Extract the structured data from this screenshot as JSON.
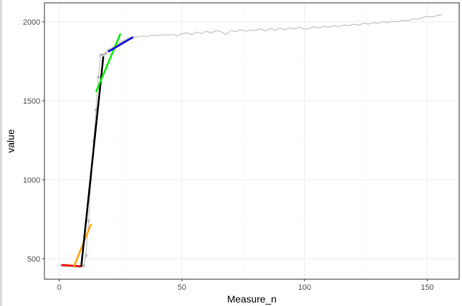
{
  "chart_data": {
    "type": "line",
    "title": "",
    "xlabel": "Measure_n",
    "ylabel": "value",
    "xlim": [
      -6,
      163
    ],
    "ylim": [
      370,
      2120
    ],
    "xticks": [
      0,
      50,
      100,
      150
    ],
    "yticks": [
      500,
      1000,
      1500,
      2000
    ],
    "grid": true,
    "legend": "none",
    "colors": {
      "line": "#bdbdbd",
      "points": "#a9a9a9",
      "fit_red": "#ff0000",
      "fit_orange": "#ffa500",
      "fit_black": "#000000",
      "fit_green": "#00ee00",
      "fit_blue": "#0000ee",
      "grid": "#ebebeb",
      "border": "#333333"
    },
    "series": [
      {
        "kind": "line",
        "color": "#bdbdbd",
        "x": [
          1,
          2,
          3,
          4,
          5,
          6,
          7,
          8,
          9,
          10,
          11,
          12,
          13,
          14,
          15,
          16,
          17,
          18,
          19,
          20,
          21,
          22,
          23,
          24,
          25,
          26,
          27,
          28,
          29,
          30,
          32,
          34,
          36,
          38,
          40,
          42,
          44,
          46,
          48,
          50,
          52,
          54,
          56,
          58,
          60,
          62,
          64,
          66,
          68,
          70,
          72,
          74,
          76,
          78,
          80,
          82,
          84,
          86,
          88,
          90,
          92,
          94,
          96,
          98,
          100,
          102,
          104,
          106,
          108,
          110,
          112,
          114,
          116,
          118,
          120,
          122,
          124,
          126,
          128,
          130,
          132,
          134,
          136,
          138,
          140,
          142,
          144,
          146,
          148,
          150,
          152,
          154,
          156
        ],
        "y": [
          458,
          457,
          456,
          455,
          454,
          452,
          451,
          450,
          453,
          455,
          540,
          740,
          1000,
          1250,
          1440,
          1650,
          1790,
          1790,
          1800,
          1820,
          1825,
          1835,
          1845,
          1855,
          1865,
          1875,
          1880,
          1890,
          1895,
          1900,
          1905,
          1910,
          1908,
          1915,
          1912,
          1918,
          1915,
          1920,
          1910,
          1925,
          1930,
          1918,
          1935,
          1925,
          1940,
          1930,
          1945,
          1935,
          1920,
          1945,
          1938,
          1950,
          1940,
          1948,
          1944,
          1955,
          1942,
          1958,
          1946,
          1960,
          1950,
          1962,
          1955,
          1965,
          1952,
          1958,
          1968,
          1960,
          1972,
          1965,
          1975,
          1970,
          1980,
          1975,
          1985,
          1978,
          1990,
          1985,
          1995,
          1990,
          2000,
          1995,
          2005,
          2000,
          2010,
          2005,
          2018,
          2015,
          2025,
          2035,
          2030,
          2040,
          2045
        ]
      },
      {
        "kind": "points",
        "color": "#a9a9a9",
        "x": [
          1,
          2,
          3,
          4,
          5,
          6,
          7,
          8,
          9,
          10,
          11,
          12,
          13,
          14,
          15,
          16,
          17,
          18,
          19,
          20,
          21,
          22,
          23,
          24,
          25,
          26,
          27,
          28,
          29,
          30
        ],
        "y": [
          458,
          457,
          456,
          455,
          454,
          452,
          451,
          450,
          453,
          455,
          520,
          740,
          1000,
          1245,
          1440,
          1650,
          1790,
          1790,
          1800,
          1820,
          1825,
          1835,
          1845,
          1855,
          1865,
          1875,
          1880,
          1890,
          1895,
          1900
        ]
      },
      {
        "kind": "fit",
        "color": "#ff0000",
        "x": [
          1,
          9
        ],
        "y": [
          460,
          452
        ]
      },
      {
        "kind": "fit",
        "color": "#ffa500",
        "x": [
          6,
          13
        ],
        "y": [
          450,
          720
        ]
      },
      {
        "kind": "fit",
        "color": "#000000",
        "x": [
          9,
          18
        ],
        "y": [
          450,
          1780
        ]
      },
      {
        "kind": "fit",
        "color": "#00ee00",
        "x": [
          15,
          25
        ],
        "y": [
          1555,
          1925
        ]
      },
      {
        "kind": "fit",
        "color": "#0000ee",
        "x": [
          20,
          30
        ],
        "y": [
          1810,
          1902
        ]
      }
    ]
  }
}
